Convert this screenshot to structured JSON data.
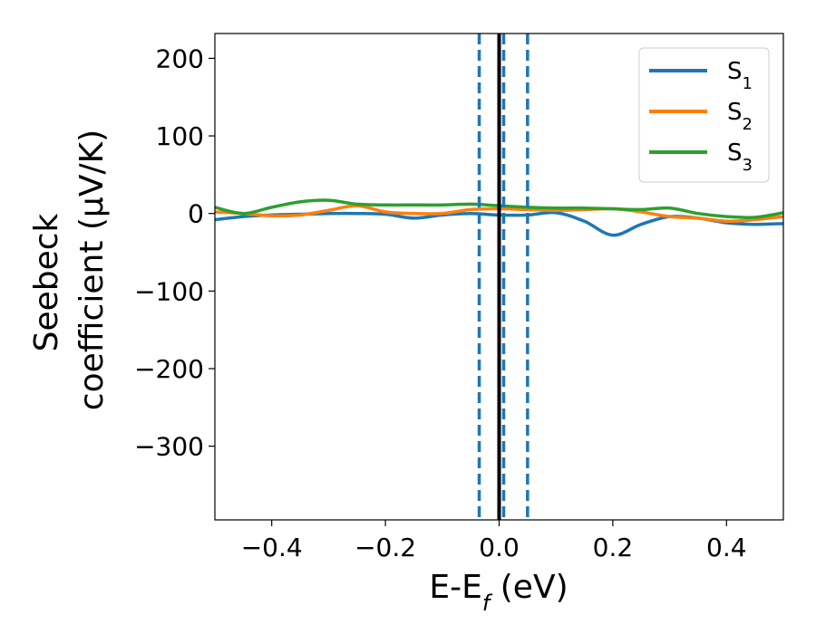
{
  "chart_data": {
    "type": "line",
    "xlabel": "E-E",
    "xlabel_sub": "f",
    "xlabel_unit": " (eV)",
    "ylabel_line1": "Seebeck",
    "ylabel_line2": "coefficient  (μV/K)",
    "xlim": [
      -0.5,
      0.5
    ],
    "ylim": [
      -395,
      232
    ],
    "xticks": [
      -0.4,
      -0.2,
      0.0,
      0.2,
      0.4
    ],
    "xtick_labels": [
      "−0.4",
      "−0.2",
      "0.0",
      "0.2",
      "0.4"
    ],
    "yticks": [
      200,
      100,
      0,
      -100,
      -200,
      -300
    ],
    "ytick_labels": [
      "200",
      "100",
      "0",
      "−100",
      "−200",
      "−300"
    ],
    "grid": false,
    "legend_position": "top-right",
    "series": [
      {
        "name": "S",
        "sub": "1",
        "color": "#1f77b4",
        "x": [
          -0.5,
          -0.45,
          -0.4,
          -0.35,
          -0.3,
          -0.25,
          -0.2,
          -0.15,
          -0.1,
          -0.05,
          0.0,
          0.05,
          0.1,
          0.15,
          0.2,
          0.25,
          0.3,
          0.35,
          0.4,
          0.45,
          0.5
        ],
        "y": [
          -8,
          -4,
          -2,
          -1,
          0,
          0,
          -1,
          -6,
          -2,
          0,
          -2,
          -2,
          1,
          -10,
          -28,
          -14,
          -4,
          -6,
          -12,
          -14,
          -13
        ]
      },
      {
        "name": "S",
        "sub": "2",
        "color": "#ff7f0e",
        "x": [
          -0.5,
          -0.45,
          -0.4,
          -0.35,
          -0.3,
          -0.25,
          -0.2,
          -0.15,
          -0.1,
          -0.05,
          0.0,
          0.05,
          0.1,
          0.15,
          0.2,
          0.25,
          0.3,
          0.35,
          0.4,
          0.45,
          0.5
        ],
        "y": [
          2,
          0,
          -3,
          -2,
          4,
          10,
          2,
          0,
          0,
          5,
          6,
          5,
          4,
          5,
          6,
          2,
          -4,
          -6,
          -10,
          -8,
          -4
        ]
      },
      {
        "name": "S",
        "sub": "3",
        "color": "#2ca02c",
        "x": [
          -0.5,
          -0.45,
          -0.4,
          -0.35,
          -0.3,
          -0.25,
          -0.2,
          -0.15,
          -0.1,
          -0.05,
          0.0,
          0.05,
          0.1,
          0.15,
          0.2,
          0.25,
          0.3,
          0.35,
          0.4,
          0.45,
          0.5
        ],
        "y": [
          8,
          0,
          8,
          15,
          17,
          12,
          11,
          11,
          11,
          12,
          10,
          8,
          7,
          7,
          6,
          5,
          7,
          0,
          -4,
          -5,
          1
        ]
      }
    ],
    "vlines": [
      {
        "x": 0.0,
        "style": "solid",
        "color": "#000000"
      },
      {
        "x": -0.035,
        "style": "dashed",
        "color": "#1f77b4"
      },
      {
        "x": 0.008,
        "style": "dashed",
        "color": "#1f77b4"
      },
      {
        "x": 0.05,
        "style": "dashed",
        "color": "#1f77b4"
      }
    ]
  }
}
